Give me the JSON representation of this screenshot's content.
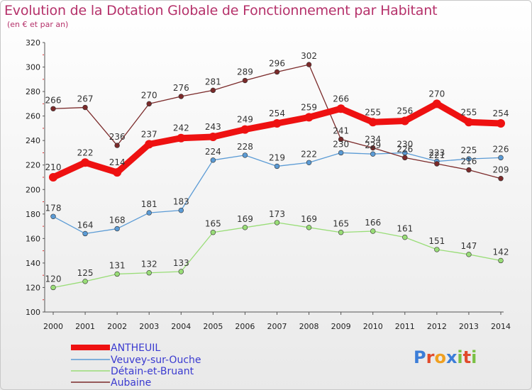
{
  "header": {
    "title": "Evolution de la Dotation Globale de Fonctionnement par Habitant",
    "subtitle": "(en € et par an)"
  },
  "logo": {
    "text": "Proxiti",
    "letters": [
      "P",
      "r",
      "o",
      "x",
      "i",
      "t",
      "i"
    ],
    "colors": [
      "#3b7dd8",
      "#e14b2c",
      "#f0a020",
      "#3b7dd8",
      "#7ac043",
      "#e14b2c",
      "#7ac043"
    ]
  },
  "chart_data": {
    "type": "line",
    "title": "Evolution de la Dotation Globale de Fonctionnement par Habitant",
    "subtitle": "(en € et par an)",
    "x": [
      "2000",
      "2001",
      "2002",
      "2003",
      "2004",
      "2005",
      "2006",
      "2007",
      "2008",
      "2009",
      "2010",
      "2011",
      "2012",
      "2013",
      "2014"
    ],
    "ylim": [
      100,
      320
    ],
    "yticks": [
      100,
      120,
      140,
      160,
      180,
      200,
      220,
      240,
      260,
      280,
      300,
      320
    ],
    "grid": false,
    "legend": "bottom-left",
    "series": [
      {
        "name": "ANTHEUIL",
        "color": "#ee1111",
        "bold": true,
        "values": [
          210,
          222,
          214,
          237,
          242,
          243,
          249,
          254,
          259,
          266,
          255,
          256,
          270,
          255,
          254
        ]
      },
      {
        "name": "Veuvey-sur-Ouche",
        "color": "#5b9bd5",
        "values": [
          178,
          164,
          168,
          181,
          183,
          224,
          228,
          219,
          222,
          230,
          229,
          230,
          223,
          225,
          226
        ]
      },
      {
        "name": "Détain-et-Bruant",
        "color": "#99dd77",
        "values": [
          120,
          125,
          131,
          132,
          133,
          165,
          169,
          173,
          169,
          165,
          166,
          161,
          151,
          147,
          142
        ]
      },
      {
        "name": "Aubaine",
        "color": "#7b2a2a",
        "values": [
          266,
          267,
          236,
          270,
          276,
          281,
          289,
          296,
          302,
          241,
          234,
          226,
          221,
          216,
          209
        ]
      }
    ]
  }
}
